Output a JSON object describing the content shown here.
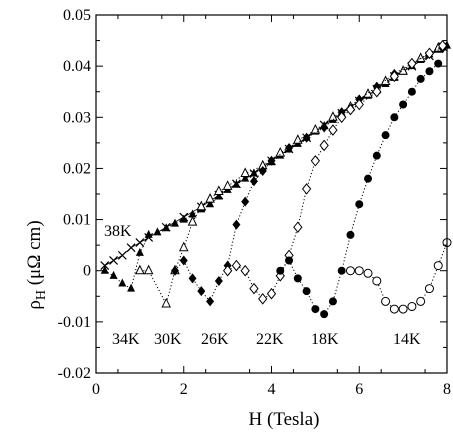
{
  "chart_data": {
    "type": "scatter",
    "xlabel": "H (Tesla)",
    "ylabel_main": "ρ",
    "ylabel_sub": "H",
    "ylabel_unit": "(μΩ cm)",
    "xlim": [
      0,
      8
    ],
    "ylim": [
      -0.02,
      0.05
    ],
    "x_ticks": [
      0,
      2,
      4,
      6,
      8
    ],
    "y_ticks": [
      -0.02,
      -0.01,
      0,
      0.01,
      0.02,
      0.03,
      0.04,
      0.05
    ],
    "x_tick_labels": [
      "0",
      "2",
      "4",
      "6",
      "8"
    ],
    "y_tick_labels": [
      "-0.02",
      "-0.01",
      "0",
      "0.01",
      "0.02",
      "0.03",
      "0.04",
      "0.05"
    ],
    "grid": false,
    "series": [
      {
        "name": "38K",
        "marker": "cross",
        "points": [
          [
            0.2,
            0.001
          ],
          [
            0.4,
            0.002
          ],
          [
            0.6,
            0.003
          ],
          [
            0.8,
            0.0045
          ],
          [
            1.0,
            0.0055
          ],
          [
            1.2,
            0.0065
          ],
          [
            1.6,
            0.0085
          ],
          [
            2.0,
            0.0105
          ],
          [
            2.4,
            0.0125
          ],
          [
            2.8,
            0.0148
          ],
          [
            3.2,
            0.017
          ],
          [
            3.6,
            0.019
          ],
          [
            4.0,
            0.0215
          ],
          [
            4.4,
            0.0238
          ],
          [
            4.8,
            0.026
          ],
          [
            5.2,
            0.0285
          ],
          [
            5.6,
            0.0308
          ],
          [
            6.0,
            0.0332
          ],
          [
            6.4,
            0.0355
          ],
          [
            6.8,
            0.038
          ],
          [
            7.2,
            0.04
          ],
          [
            7.6,
            0.042
          ],
          [
            7.9,
            0.0438
          ]
        ]
      },
      {
        "name": "34K",
        "marker": "filled-triangle",
        "points": [
          [
            0.2,
            0.0
          ],
          [
            0.4,
            -0.001
          ],
          [
            0.6,
            -0.0025
          ],
          [
            0.8,
            -0.0035
          ],
          [
            1.0,
            0.0035
          ],
          [
            1.2,
            0.007
          ],
          [
            1.4,
            0.0075
          ],
          [
            1.6,
            0.0083
          ],
          [
            1.8,
            0.0092
          ],
          [
            2.0,
            0.01
          ],
          [
            2.2,
            0.011
          ],
          [
            2.4,
            0.012
          ],
          [
            2.6,
            0.013
          ],
          [
            2.8,
            0.0145
          ],
          [
            3.0,
            0.0158
          ],
          [
            3.2,
            0.0168
          ],
          [
            3.4,
            0.018
          ],
          [
            3.6,
            0.019
          ],
          [
            3.8,
            0.02
          ],
          [
            4.0,
            0.0212
          ],
          [
            4.2,
            0.0225
          ],
          [
            4.4,
            0.0237
          ],
          [
            4.6,
            0.0248
          ],
          [
            4.8,
            0.026
          ],
          [
            5.0,
            0.0272
          ],
          [
            5.2,
            0.0283
          ],
          [
            5.4,
            0.0295
          ],
          [
            5.6,
            0.0307
          ],
          [
            5.8,
            0.0318
          ],
          [
            6.0,
            0.033
          ],
          [
            6.2,
            0.0342
          ],
          [
            6.4,
            0.0354
          ],
          [
            6.6,
            0.0365
          ],
          [
            6.8,
            0.0377
          ],
          [
            7.0,
            0.0389
          ],
          [
            7.2,
            0.04
          ],
          [
            7.4,
            0.0412
          ],
          [
            7.6,
            0.0423
          ],
          [
            7.8,
            0.0432
          ],
          [
            8.0,
            0.044
          ]
        ]
      },
      {
        "name": "30K",
        "marker": "open-triangle",
        "points": [
          [
            1.0,
            0.0
          ],
          [
            1.2,
            0.0
          ],
          [
            1.6,
            -0.0065
          ],
          [
            1.8,
            0.0
          ],
          [
            2.0,
            0.0045
          ],
          [
            2.2,
            0.0095
          ],
          [
            2.4,
            0.0125
          ],
          [
            2.6,
            0.014
          ],
          [
            2.8,
            0.0155
          ],
          [
            3.0,
            0.0165
          ],
          [
            3.4,
            0.019
          ],
          [
            3.8,
            0.0205
          ],
          [
            4.2,
            0.023
          ],
          [
            4.6,
            0.0255
          ],
          [
            5.0,
            0.0275
          ],
          [
            5.4,
            0.03
          ],
          [
            5.8,
            0.032
          ],
          [
            6.2,
            0.0345
          ],
          [
            6.6,
            0.037
          ],
          [
            7.0,
            0.039
          ],
          [
            7.4,
            0.0415
          ],
          [
            7.8,
            0.0435
          ]
        ]
      },
      {
        "name": "26K",
        "marker": "filled-diamond",
        "points": [
          [
            1.8,
            0.0
          ],
          [
            2.0,
            0.002
          ],
          [
            2.2,
            -0.0015
          ],
          [
            2.4,
            -0.004
          ],
          [
            2.6,
            -0.006
          ],
          [
            2.8,
            -0.002
          ],
          [
            3.0,
            0.001
          ],
          [
            3.2,
            0.009
          ],
          [
            3.4,
            0.0135
          ],
          [
            3.6,
            0.0175
          ],
          [
            3.8,
            0.0195
          ],
          [
            4.0,
            0.0215
          ],
          [
            4.4,
            0.024
          ],
          [
            4.8,
            0.026
          ],
          [
            5.2,
            0.028
          ],
          [
            5.6,
            0.031
          ],
          [
            6.0,
            0.0335
          ],
          [
            6.4,
            0.036
          ],
          [
            6.8,
            0.0385
          ],
          [
            7.2,
            0.0405
          ],
          [
            7.6,
            0.0425
          ],
          [
            7.9,
            0.0435
          ]
        ]
      },
      {
        "name": "22K",
        "marker": "open-diamond",
        "points": [
          [
            3.0,
            0.0
          ],
          [
            3.2,
            0.001
          ],
          [
            3.4,
            0.0
          ],
          [
            3.6,
            -0.0035
          ],
          [
            3.8,
            -0.0055
          ],
          [
            4.0,
            -0.0045
          ],
          [
            4.2,
            -0.001
          ],
          [
            4.4,
            0.003
          ],
          [
            4.6,
            0.0085
          ],
          [
            4.8,
            0.016
          ],
          [
            5.0,
            0.0215
          ],
          [
            5.2,
            0.0245
          ],
          [
            5.4,
            0.0275
          ],
          [
            5.6,
            0.03
          ],
          [
            5.8,
            0.0315
          ],
          [
            6.0,
            0.0325
          ],
          [
            6.4,
            0.035
          ],
          [
            6.8,
            0.038
          ],
          [
            7.2,
            0.0405
          ],
          [
            7.6,
            0.0425
          ],
          [
            7.9,
            0.044
          ]
        ]
      },
      {
        "name": "18K",
        "marker": "filled-circle",
        "points": [
          [
            4.2,
            0.0
          ],
          [
            4.4,
            0.002
          ],
          [
            4.6,
            -0.0015
          ],
          [
            4.8,
            -0.004
          ],
          [
            5.0,
            -0.0075
          ],
          [
            5.2,
            -0.0085
          ],
          [
            5.4,
            -0.006
          ],
          [
            5.6,
            0.0
          ],
          [
            5.8,
            0.007
          ],
          [
            6.0,
            0.013
          ],
          [
            6.2,
            0.018
          ],
          [
            6.4,
            0.0225
          ],
          [
            6.6,
            0.0265
          ],
          [
            6.8,
            0.03
          ],
          [
            7.0,
            0.0325
          ],
          [
            7.2,
            0.035
          ],
          [
            7.4,
            0.0375
          ],
          [
            7.6,
            0.039
          ],
          [
            7.8,
            0.0405
          ]
        ]
      },
      {
        "name": "14K",
        "marker": "open-circle",
        "points": [
          [
            5.8,
            0.0
          ],
          [
            6.0,
            0.0
          ],
          [
            6.2,
            -0.0005
          ],
          [
            6.4,
            -0.002
          ],
          [
            6.6,
            -0.006
          ],
          [
            6.8,
            -0.0075
          ],
          [
            7.0,
            -0.0075
          ],
          [
            7.2,
            -0.007
          ],
          [
            7.4,
            -0.006
          ],
          [
            7.6,
            -0.0035
          ],
          [
            7.8,
            0.001
          ],
          [
            8.0,
            0.0055
          ]
        ]
      }
    ],
    "annotations": [
      "38K",
      "34K",
      "30K",
      "26K",
      "22K",
      "18K",
      "14K"
    ]
  }
}
